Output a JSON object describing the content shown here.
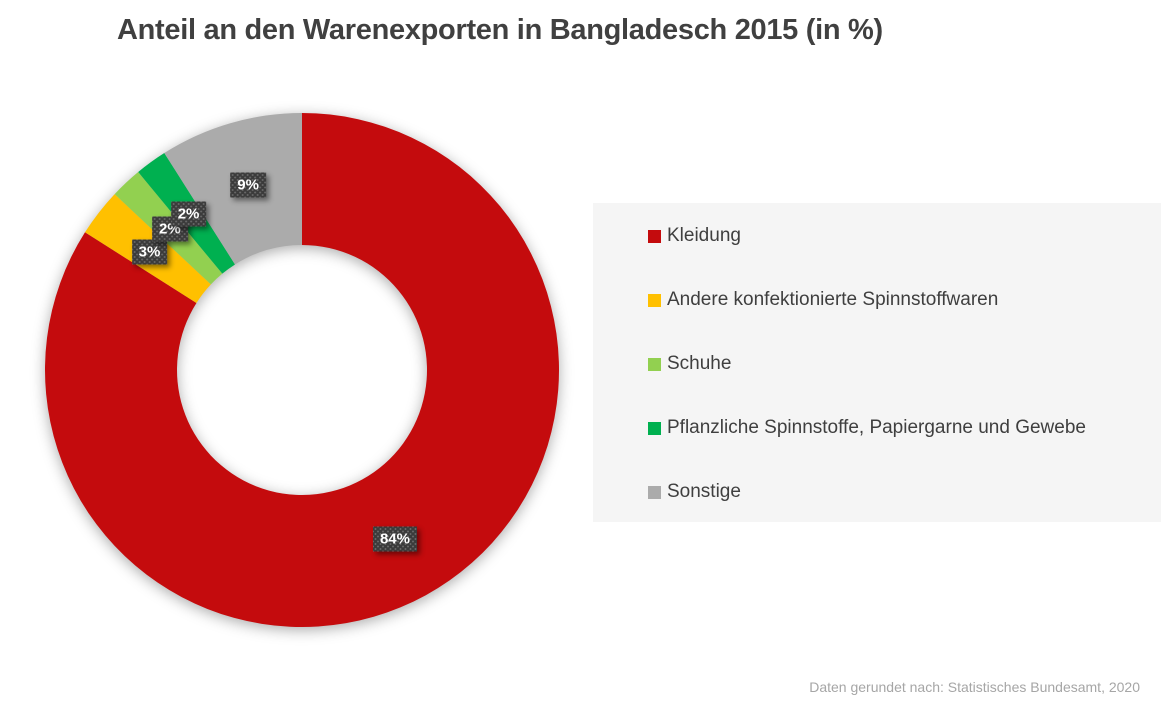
{
  "title": "Anteil an den Warenexporten in Bangladesch 2015 (in %)",
  "source_note": "Daten gerundet nach: Statistisches Bundesamt, 2020",
  "chart_data": {
    "type": "pie",
    "subtype": "donut",
    "title": "Anteil an den Warenexporten in Bangladesch 2015 (in %)",
    "unit": "%",
    "start_angle_deg": 0,
    "direction": "clockwise",
    "legend_position": "right",
    "source_note": "Daten gerundet nach: Statistisches Bundesamt, 2020",
    "segments": [
      {
        "label": "Kleidung",
        "value": 84,
        "data_label": "84%",
        "color": "#c40b0d"
      },
      {
        "label": "Andere konfektionierte Spinnstoffwaren",
        "value": 3,
        "data_label": "3%",
        "color": "#ffc000"
      },
      {
        "label": "Schuhe",
        "value": 2,
        "data_label": "2%",
        "color": "#92d050"
      },
      {
        "label": "Pflanzliche Spinnstoffe, Papiergarne und Gewebe",
        "value": 2,
        "data_label": "2%",
        "color": "#00b050"
      },
      {
        "label": "Sonstige",
        "value": 9,
        "data_label": "9%",
        "color": "#ababab"
      }
    ],
    "colors": {
      "label_box_background": "#3b3b3b",
      "label_box_text": "#ffffff",
      "title_text": "#404040",
      "legend_background": "#f5f5f5",
      "legend_text": "#3f3f3f",
      "source_note_text": "#a6a6a6"
    }
  }
}
